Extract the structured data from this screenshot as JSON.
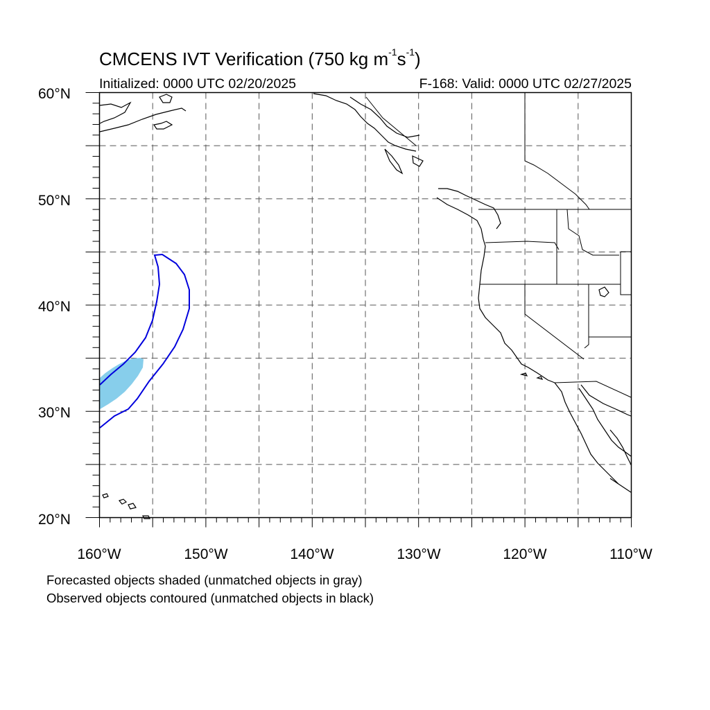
{
  "title": {
    "main": "CMCENS IVT Verification (750 kg m",
    "exp1": "-1",
    "mid": "s",
    "exp2": "-1",
    "close": ")"
  },
  "init_label": "Initialized: 0000 UTC 02/20/2025",
  "valid_label": "F-168: Valid: 0000 UTC 02/27/2025",
  "notes": [
    "Forecasted objects shaded (unmatched objects in gray)",
    "Observed objects contoured (unmatched objects in black)"
  ],
  "map": {
    "lon_range": [
      -160,
      -110
    ],
    "lat_range": [
      20,
      60
    ],
    "lat_labels": [
      "60°N",
      "50°N",
      "40°N",
      "30°N",
      "20°N"
    ],
    "lon_labels": [
      "160°W",
      "150°W",
      "140°W",
      "130°W",
      "120°W",
      "110°W"
    ],
    "gridlines": "dashed every 5°",
    "colors": {
      "forecast_fill": "#87ceeb",
      "observed_contour": "#0000dd",
      "coastline": "#000000",
      "grid": "#555555"
    }
  },
  "objects": {
    "forecast_shaded": "matched forecast IVT object (light blue)",
    "observed_contour": "matched observed IVT object (blue outline)"
  }
}
